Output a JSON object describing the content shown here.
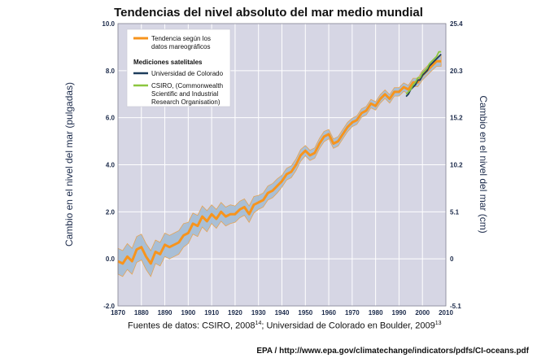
{
  "chart_data": {
    "type": "line",
    "title": "Tendencias del nivel absoluto del mar medio mundial",
    "ylabel_left": "Cambio en el nivel del mar (pulgadas)",
    "ylabel_right": "Cambio en el nivel del mar (cm)",
    "xlim": [
      1870,
      2010
    ],
    "ylim": [
      -2.0,
      10.0
    ],
    "x_ticks": [
      "1870",
      "1880",
      "1890",
      "1900",
      "1910",
      "1920",
      "1930",
      "1940",
      "1950",
      "1960",
      "1970",
      "1980",
      "1990",
      "2000",
      "2010"
    ],
    "y_ticks_left": [
      "-2.0",
      "0.0",
      "2.0",
      "4.0",
      "6.0",
      "8.0",
      "10.0"
    ],
    "y_ticks_right": [
      "-5.1",
      "0",
      "5.1",
      "10.2",
      "15.2",
      "20.3",
      "25.4"
    ],
    "grid": true,
    "legend_position": "top-left",
    "legend": {
      "tide_gauge": "Tendencia según los datos mareográficos",
      "satellite_header": "Mediciones satelitales",
      "colorado": "Universidad de Colorado",
      "csiro": "CSIRO, (Commonwealth Scientific and Industrial Research Organisation)"
    },
    "series": [
      {
        "name": "Tendencia según los datos mareográficos",
        "color": "#f7941d",
        "band_color": "#a9bfd6",
        "x": [
          1870,
          1872,
          1874,
          1876,
          1878,
          1880,
          1882,
          1884,
          1886,
          1888,
          1890,
          1892,
          1894,
          1896,
          1898,
          1900,
          1902,
          1904,
          1906,
          1908,
          1910,
          1912,
          1914,
          1916,
          1918,
          1920,
          1922,
          1924,
          1926,
          1928,
          1930,
          1932,
          1934,
          1936,
          1938,
          1940,
          1942,
          1944,
          1946,
          1948,
          1950,
          1952,
          1954,
          1956,
          1958,
          1960,
          1962,
          1964,
          1966,
          1968,
          1970,
          1972,
          1974,
          1976,
          1978,
          1980,
          1982,
          1984,
          1986,
          1988,
          1990,
          1992,
          1994,
          1996,
          1998,
          2000,
          2002,
          2004,
          2006,
          2008
        ],
        "values": [
          -0.1,
          -0.2,
          0.1,
          -0.1,
          0.4,
          0.5,
          0.1,
          -0.2,
          0.3,
          0.2,
          0.6,
          0.5,
          0.6,
          0.7,
          1.0,
          1.1,
          1.5,
          1.4,
          1.8,
          1.6,
          1.9,
          1.7,
          2.0,
          1.8,
          1.9,
          1.9,
          2.1,
          2.2,
          1.9,
          2.3,
          2.4,
          2.5,
          2.8,
          2.9,
          3.1,
          3.3,
          3.6,
          3.7,
          4.0,
          4.4,
          4.6,
          4.4,
          4.5,
          4.9,
          5.2,
          5.3,
          4.9,
          5.0,
          5.3,
          5.6,
          5.8,
          5.9,
          6.2,
          6.3,
          6.6,
          6.5,
          6.8,
          7.0,
          6.8,
          7.1,
          7.1,
          7.3,
          7.2,
          7.5,
          7.5,
          7.8,
          8.0,
          8.2,
          8.4,
          8.4
        ],
        "uncertainty": [
          0.55,
          0.55,
          0.55,
          0.55,
          0.55,
          0.55,
          0.55,
          0.55,
          0.5,
          0.5,
          0.5,
          0.5,
          0.5,
          0.5,
          0.5,
          0.45,
          0.45,
          0.45,
          0.45,
          0.45,
          0.4,
          0.4,
          0.4,
          0.4,
          0.4,
          0.35,
          0.35,
          0.35,
          0.35,
          0.35,
          0.3,
          0.3,
          0.3,
          0.3,
          0.3,
          0.25,
          0.25,
          0.25,
          0.25,
          0.25,
          0.22,
          0.22,
          0.22,
          0.22,
          0.22,
          0.2,
          0.2,
          0.2,
          0.2,
          0.2,
          0.18,
          0.18,
          0.18,
          0.18,
          0.18,
          0.18,
          0.18,
          0.18,
          0.18,
          0.18,
          0.18,
          0.18,
          0.18,
          0.18,
          0.18,
          0.2,
          0.2,
          0.2,
          0.22,
          0.22
        ]
      },
      {
        "name": "Universidad de Colorado",
        "color": "#1d3c5c",
        "x": [
          1993,
          1994,
          1995,
          1996,
          1997,
          1998,
          1999,
          2000,
          2001,
          2002,
          2003,
          2004,
          2005,
          2006,
          2007,
          2008
        ],
        "values": [
          6.9,
          7.0,
          7.2,
          7.3,
          7.4,
          7.6,
          7.6,
          7.8,
          7.9,
          8.0,
          8.2,
          8.3,
          8.4,
          8.5,
          8.6,
          8.7
        ]
      },
      {
        "name": "CSIRO, (Commonwealth Scientific and Industrial Research Organisation)",
        "color": "#8cc63f",
        "x": [
          1993,
          1994,
          1995,
          1996,
          1997,
          1998,
          1999,
          2000,
          2001,
          2002,
          2003,
          2004,
          2005,
          2006,
          2007,
          2008
        ],
        "values": [
          7.0,
          7.1,
          7.2,
          7.4,
          7.5,
          7.7,
          7.7,
          7.9,
          8.0,
          8.1,
          8.3,
          8.4,
          8.5,
          8.6,
          8.8,
          8.8
        ]
      }
    ]
  },
  "source": {
    "prefix": "Fuentes de datos: CSIRO, 2008",
    "sup1": "14",
    "middle": "; Universidad de Colorado en Boulder, 2009",
    "sup2": "13"
  },
  "footer": "EPA / http://www.epa.gov/climatechange/indicators/pdfs/CI-oceans.pdf"
}
